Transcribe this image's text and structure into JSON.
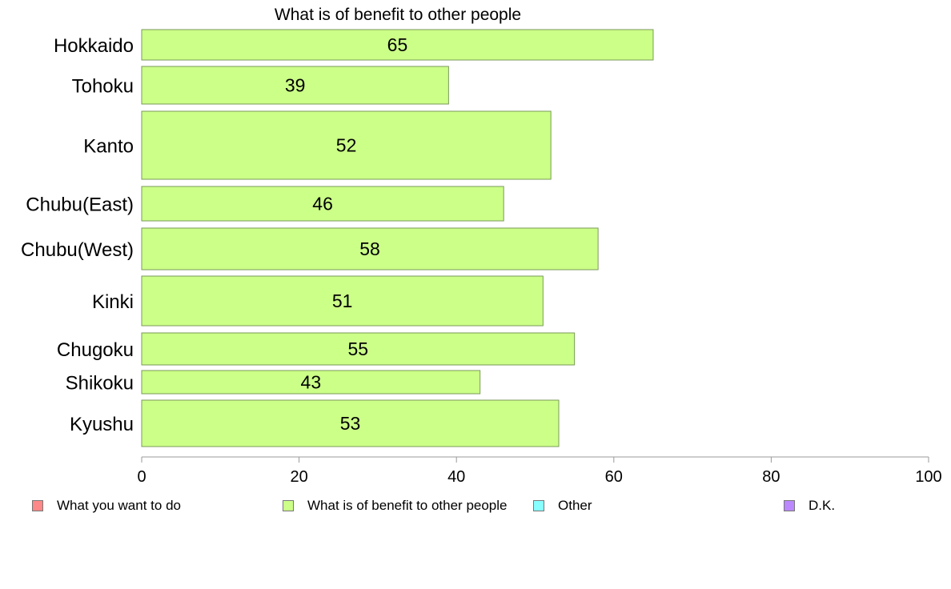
{
  "chart_data": {
    "type": "bar",
    "orientation": "horizontal",
    "title": "What is of benefit to other people",
    "categories": [
      "Hokkaido",
      "Tohoku",
      "Kanto",
      "Chubu(East)",
      "Chubu(West)",
      "Kinki",
      "Chugoku",
      "Shikoku",
      "Kyushu"
    ],
    "values": [
      65,
      39,
      52,
      46,
      58,
      51,
      55,
      43,
      53
    ],
    "data_labels": [
      "65",
      "39",
      "52",
      "46",
      "58",
      "51",
      "55",
      "43",
      "53"
    ],
    "xlim": [
      0,
      100
    ],
    "xticks": [
      0,
      20,
      40,
      60,
      80,
      100
    ],
    "xtick_labels": [
      "0",
      "20",
      "40",
      "60",
      "80",
      "100"
    ],
    "xlabel": "",
    "ylabel": "",
    "grid": false,
    "bar_color": "#ccff88",
    "bar_edge_color": "#7a9a5a",
    "legend": {
      "placement": "bottom",
      "items": [
        {
          "label": "What you want to do",
          "color": "#ff8888"
        },
        {
          "label": "What is of benefit to other people",
          "color": "#ccff88"
        },
        {
          "label": "Other",
          "color": "#88ffff"
        },
        {
          "label": "D.K.",
          "color": "#bb88ff"
        }
      ]
    }
  }
}
